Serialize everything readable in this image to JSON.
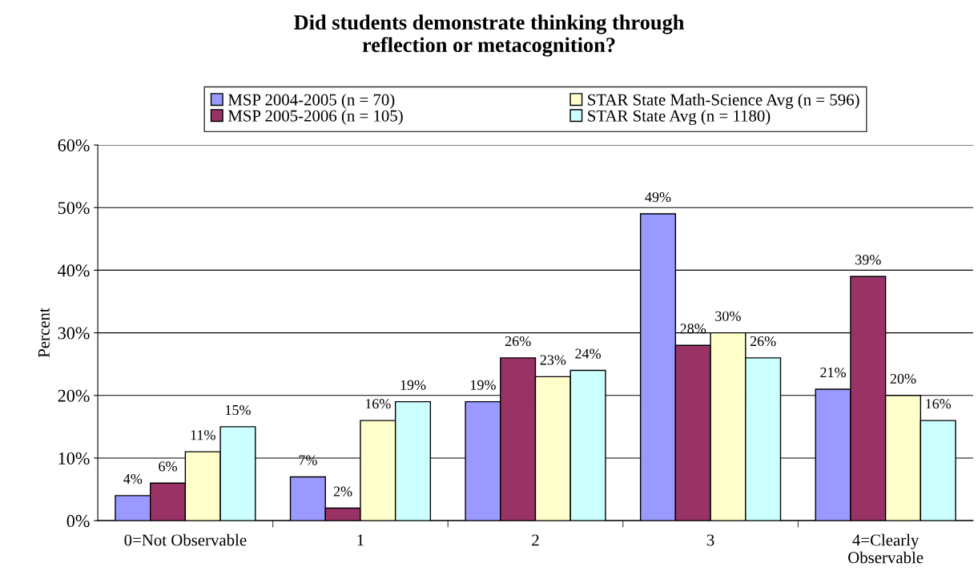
{
  "chart_data": {
    "type": "bar",
    "title": "Did students demonstrate thinking through\nreflection or metacognition?",
    "ylabel": "Percent",
    "categories": [
      "0=Not Observable",
      "1",
      "2",
      "3",
      "4=Clearly\nObservable"
    ],
    "series": [
      {
        "name": "MSP 2004-2005 (n = 70)",
        "color": "#9999ff",
        "values": [
          4,
          7,
          19,
          49,
          21
        ],
        "value_labels": [
          "4%",
          "7%",
          "19%",
          "49%",
          "21%"
        ]
      },
      {
        "name": "MSP 2005-2006 (n = 105)",
        "color": "#993366",
        "values": [
          6,
          2,
          26,
          28,
          39
        ],
        "value_labels": [
          "6%",
          "2%",
          "26%",
          "28%",
          "39%"
        ]
      },
      {
        "name": "STAR State Math-Science Avg (n = 596)",
        "color": "#ffffcc",
        "values": [
          11,
          16,
          23,
          30,
          20
        ],
        "value_labels": [
          "11%",
          "16%",
          "23%",
          "30%",
          "20%"
        ]
      },
      {
        "name": "STAR State Avg (n = 1180)",
        "color": "#ccffff",
        "values": [
          15,
          19,
          24,
          26,
          16
        ],
        "value_labels": [
          "15%",
          "19%",
          "24%",
          "26%",
          "16%"
        ]
      }
    ],
    "ylim": [
      0,
      60
    ],
    "yticks": [
      {
        "value": 0,
        "label": "0%"
      },
      {
        "value": 10,
        "label": "10%"
      },
      {
        "value": 20,
        "label": "20%"
      },
      {
        "value": 30,
        "label": "30%"
      },
      {
        "value": 40,
        "label": "40%"
      },
      {
        "value": 50,
        "label": "50%"
      },
      {
        "value": 60,
        "label": "60%"
      }
    ],
    "grid": "y",
    "legend": "top"
  }
}
